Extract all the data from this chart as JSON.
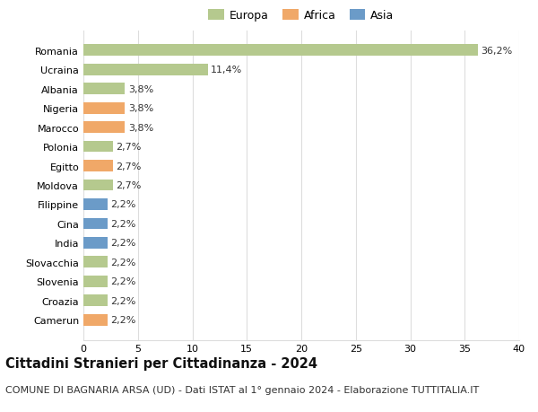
{
  "countries": [
    "Romania",
    "Ucraina",
    "Albania",
    "Nigeria",
    "Marocco",
    "Polonia",
    "Egitto",
    "Moldova",
    "Filippine",
    "Cina",
    "India",
    "Slovacchia",
    "Slovenia",
    "Croazia",
    "Camerun"
  ],
  "values": [
    36.2,
    11.4,
    3.8,
    3.8,
    3.8,
    2.7,
    2.7,
    2.7,
    2.2,
    2.2,
    2.2,
    2.2,
    2.2,
    2.2,
    2.2
  ],
  "labels": [
    "36,2%",
    "11,4%",
    "3,8%",
    "3,8%",
    "3,8%",
    "2,7%",
    "2,7%",
    "2,7%",
    "2,2%",
    "2,2%",
    "2,2%",
    "2,2%",
    "2,2%",
    "2,2%",
    "2,2%"
  ],
  "continents": [
    "Europa",
    "Europa",
    "Europa",
    "Africa",
    "Africa",
    "Europa",
    "Africa",
    "Europa",
    "Asia",
    "Asia",
    "Asia",
    "Europa",
    "Europa",
    "Europa",
    "Africa"
  ],
  "continent_colors": {
    "Europa": "#b5c98e",
    "Africa": "#f0a868",
    "Asia": "#6b9bc8"
  },
  "legend_labels": [
    "Europa",
    "Africa",
    "Asia"
  ],
  "legend_colors": [
    "#b5c98e",
    "#f0a868",
    "#6b9bc8"
  ],
  "title": "Cittadini Stranieri per Cittadinanza - 2024",
  "subtitle": "COMUNE DI BAGNARIA ARSA (UD) - Dati ISTAT al 1° gennaio 2024 - Elaborazione TUTTITALIA.IT",
  "xlim": [
    0,
    40
  ],
  "xticks": [
    0,
    5,
    10,
    15,
    20,
    25,
    30,
    35,
    40
  ],
  "background_color": "#ffffff",
  "grid_color": "#dddddd",
  "bar_height": 0.6,
  "title_fontsize": 10.5,
  "subtitle_fontsize": 8,
  "label_fontsize": 8,
  "tick_fontsize": 8,
  "legend_fontsize": 9
}
